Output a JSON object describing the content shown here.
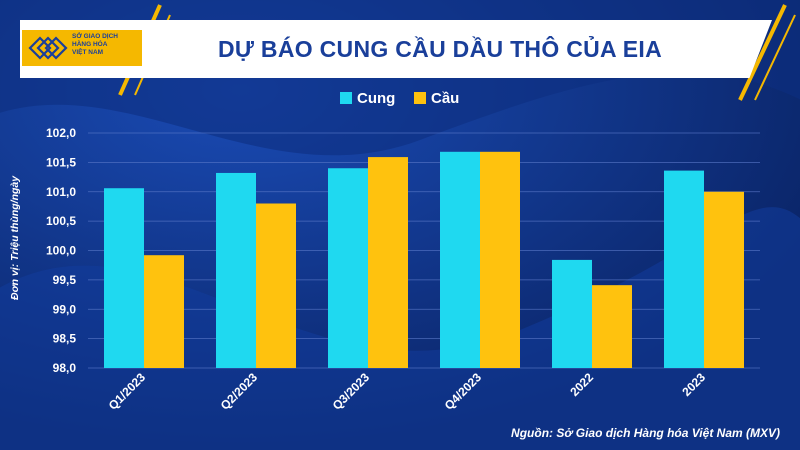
{
  "header": {
    "logo_lines": [
      "SỞ GIAO DỊCH",
      "HÀNG HÓA",
      "VIỆT NAM"
    ]
  },
  "footer": {
    "source": "Nguồn: Sở Giao dịch Hàng hóa Việt Nam (MXV)"
  },
  "colors": {
    "background": "#0b2a73",
    "accent": "#f5b800",
    "supply": "#1fd9f0",
    "demand": "#ffc20e"
  },
  "chart_data": {
    "type": "bar",
    "title": "DỰ BÁO CUNG CẦU DẦU THÔ CỦA EIA",
    "ylabel": "Đơn vị: Triệu thùng/ngày",
    "xlabel": "",
    "categories": [
      "Q1/2023",
      "Q2/2023",
      "Q3/2023",
      "Q4/2023",
      "2022",
      "2023"
    ],
    "series": [
      {
        "name": "Cung",
        "color": "#1fd9f0",
        "values": [
          101.06,
          101.32,
          101.4,
          101.68,
          99.84,
          101.36
        ]
      },
      {
        "name": "Cầu",
        "color": "#ffc20e",
        "values": [
          99.92,
          100.8,
          101.59,
          101.68,
          99.41,
          101.0
        ]
      }
    ],
    "ylim": [
      98.0,
      102.0
    ],
    "yticks": [
      "98,0",
      "98,5",
      "99,0",
      "99,5",
      "100,0",
      "100,5",
      "101,0",
      "101,5",
      "102,0"
    ],
    "grid": true,
    "legend": "top-center"
  }
}
